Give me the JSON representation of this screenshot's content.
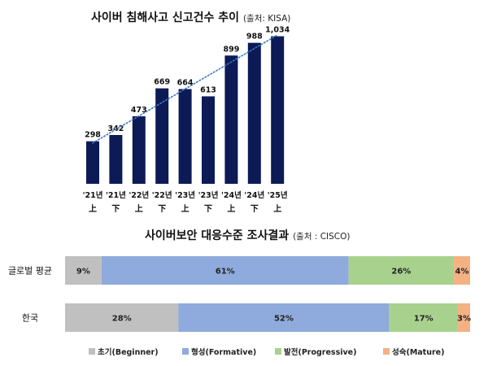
{
  "title1": {
    "main": "사이버 침해사고 신고건수 추이",
    "source": "(출처: KISA)"
  },
  "title2": {
    "main": "사이버보안 대응수준 조사결과",
    "source": "(출처 : CISCO)"
  },
  "colors": {
    "bar": "#0c1a56",
    "trend": "#3a78c2",
    "beginner": "#c0c0c0",
    "formative": "#8faadc",
    "progressive": "#a9d18e",
    "mature": "#f4b183"
  },
  "chart_data": [
    {
      "type": "bar",
      "categories": [
        {
          "year": "'21년",
          "half": "上"
        },
        {
          "year": "'21년",
          "half": "下"
        },
        {
          "year": "'22년",
          "half": "上"
        },
        {
          "year": "'22년",
          "half": "下"
        },
        {
          "year": "'23년",
          "half": "上"
        },
        {
          "year": "'23년",
          "half": "下"
        },
        {
          "year": "'24년",
          "half": "上"
        },
        {
          "year": "'24년",
          "half": "下"
        },
        {
          "year": "'25년",
          "half": "上"
        }
      ],
      "values": [
        298,
        342,
        473,
        669,
        664,
        613,
        899,
        988,
        1034
      ],
      "value_labels": [
        "298",
        "342",
        "473",
        "669",
        "664",
        "613",
        "899",
        "988",
        "1,034"
      ],
      "trendline": "linear, dotted",
      "ylim": [
        0,
        1100
      ],
      "grid": false
    },
    {
      "type": "bar",
      "orientation": "horizontal",
      "stacked": "100%",
      "categories": [
        "글로벌 평균",
        "한국"
      ],
      "series": [
        {
          "name": "초기(Beginner)",
          "values": [
            9,
            28
          ],
          "labels": [
            "9%",
            "28%"
          ]
        },
        {
          "name": "형성(Formative)",
          "values": [
            61,
            52
          ],
          "labels": [
            "61%",
            "52%"
          ]
        },
        {
          "name": "발전(Progressive)",
          "values": [
            26,
            17
          ],
          "labels": [
            "26%",
            "17%"
          ]
        },
        {
          "name": "성숙(Mature)",
          "values": [
            4,
            3
          ],
          "labels": [
            "4%",
            "3%"
          ]
        }
      ],
      "legend": "bottom"
    }
  ]
}
